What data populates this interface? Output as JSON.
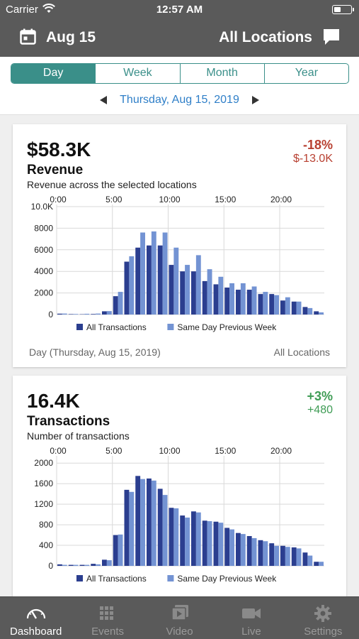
{
  "status_bar": {
    "carrier": "Carrier",
    "time": "12:57 AM"
  },
  "header": {
    "date": "Aug 15",
    "location": "All Locations"
  },
  "period": {
    "tabs": [
      {
        "label": "Day",
        "active": true
      },
      {
        "label": "Week",
        "active": false
      },
      {
        "label": "Month",
        "active": false
      },
      {
        "label": "Year",
        "active": false
      }
    ],
    "date": "Thursday, Aug 15, 2019"
  },
  "revenue": {
    "value": "$58.3K",
    "title": "Revenue",
    "subtitle": "Revenue across the selected locations",
    "change_pct": "-18%",
    "change_abs": "$-13.0K",
    "footer_left": "Day (Thursday, Aug 15, 2019)",
    "footer_right": "All Locations"
  },
  "transactions": {
    "value": "16.4K",
    "title": "Transactions",
    "subtitle": "Number of transactions",
    "change_pct": "+3%",
    "change_abs": "+480"
  },
  "tabs": [
    {
      "label": "Dashboard",
      "icon": "gauge-icon",
      "active": true
    },
    {
      "label": "Events",
      "icon": "grid-icon",
      "active": false
    },
    {
      "label": "Video",
      "icon": "video-icon",
      "active": false
    },
    {
      "label": "Live",
      "icon": "camera-icon",
      "active": false
    },
    {
      "label": "Settings",
      "icon": "gear-icon",
      "active": false
    }
  ],
  "colors": {
    "accent": "#3a8f89",
    "header_bg": "#5a5a5a",
    "link": "#2f7fc8",
    "negative": "#b84031",
    "positive": "#3f9c55",
    "series_current": "#2b3e8f",
    "series_previous": "#7393d3"
  },
  "chart_data": [
    {
      "type": "bar",
      "x": [
        0,
        1,
        2,
        3,
        4,
        5,
        6,
        7,
        8,
        9,
        10,
        11,
        12,
        13,
        14,
        15,
        16,
        17,
        18,
        19,
        20,
        21,
        22,
        23
      ],
      "x_tick_labels": [
        "0:00",
        "5:00",
        "10:00",
        "15:00",
        "20:00"
      ],
      "x_tick_values": [
        0,
        5,
        10,
        15,
        20
      ],
      "ylim": [
        0,
        10000
      ],
      "y_tick_labels": [
        "0",
        "2000",
        "4000",
        "6000",
        "8000",
        "10.0K"
      ],
      "y_tick_values": [
        0,
        2000,
        4000,
        6000,
        8000,
        10000
      ],
      "series": [
        {
          "name": "All Transactions",
          "values": [
            80,
            40,
            30,
            50,
            300,
            1700,
            4900,
            6200,
            6400,
            6400,
            4600,
            4000,
            4000,
            3100,
            2800,
            2500,
            2300,
            2300,
            1900,
            1900,
            1300,
            1200,
            700,
            300
          ]
        },
        {
          "name": "Same Day Previous Week",
          "values": [
            90,
            50,
            70,
            90,
            320,
            2100,
            5400,
            7600,
            7700,
            7600,
            6200,
            4600,
            5500,
            4200,
            3500,
            2900,
            2900,
            2600,
            2100,
            1800,
            1600,
            1200,
            600,
            200
          ]
        }
      ],
      "legend_position": "bottom",
      "grid": true
    },
    {
      "type": "bar",
      "x": [
        0,
        1,
        2,
        3,
        4,
        5,
        6,
        7,
        8,
        9,
        10,
        11,
        12,
        13,
        14,
        15,
        16,
        17,
        18,
        19,
        20,
        21,
        22,
        23
      ],
      "x_tick_labels": [
        "0:00",
        "5:00",
        "10:00",
        "15:00",
        "20:00"
      ],
      "x_tick_values": [
        0,
        5,
        10,
        15,
        20
      ],
      "ylim": [
        0,
        2100
      ],
      "y_tick_labels": [
        "0",
        "400",
        "800",
        "1200",
        "1600",
        "2000"
      ],
      "y_tick_values": [
        0,
        400,
        800,
        1200,
        1600,
        2000
      ],
      "series": [
        {
          "name": "All Transactions",
          "values": [
            30,
            20,
            20,
            40,
            120,
            600,
            1480,
            1750,
            1700,
            1500,
            1130,
            980,
            1060,
            880,
            860,
            740,
            640,
            580,
            500,
            440,
            390,
            360,
            260,
            80
          ]
        },
        {
          "name": "Same Day Previous Week",
          "values": [
            20,
            20,
            20,
            30,
            110,
            610,
            1440,
            1690,
            1660,
            1380,
            1120,
            940,
            1040,
            870,
            840,
            710,
            620,
            540,
            480,
            390,
            370,
            340,
            200,
            80
          ]
        }
      ],
      "legend_position": "bottom",
      "grid": true
    }
  ]
}
